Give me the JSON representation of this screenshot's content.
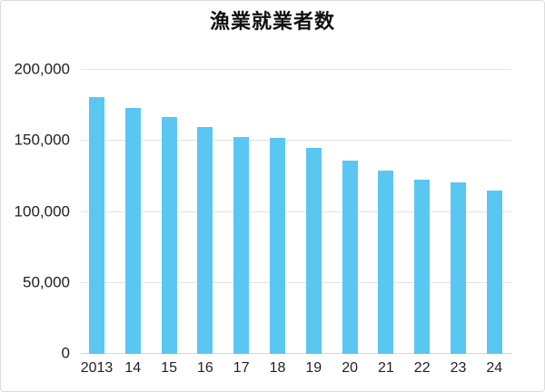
{
  "chart_data": {
    "type": "bar",
    "title": "漁業就業者数",
    "categories": [
      "2013",
      "14",
      "15",
      "16",
      "17",
      "18",
      "19",
      "20",
      "21",
      "22",
      "23",
      "24"
    ],
    "values": [
      181000,
      173000,
      167000,
      160000,
      153000,
      152000,
      145000,
      136000,
      129000,
      123000,
      121000,
      115000
    ],
    "xlabel": "",
    "ylabel": "",
    "ylim": [
      0,
      200000
    ],
    "yticks": [
      {
        "value": 0,
        "label": "0"
      },
      {
        "value": 50000,
        "label": "50,000"
      },
      {
        "value": 100000,
        "label": "100,000"
      },
      {
        "value": 150000,
        "label": "150,000"
      },
      {
        "value": 200000,
        "label": "200,000"
      }
    ],
    "grid": "horizontal",
    "legend": "none",
    "colors": {
      "bar": "#5AC7F2",
      "gridline": "#e3e3e3",
      "axis_line": "#d6d6d6",
      "tick_text": "#222222",
      "title_text": "#111111",
      "background": "#ffffff",
      "border": "#dcdcdc"
    }
  }
}
